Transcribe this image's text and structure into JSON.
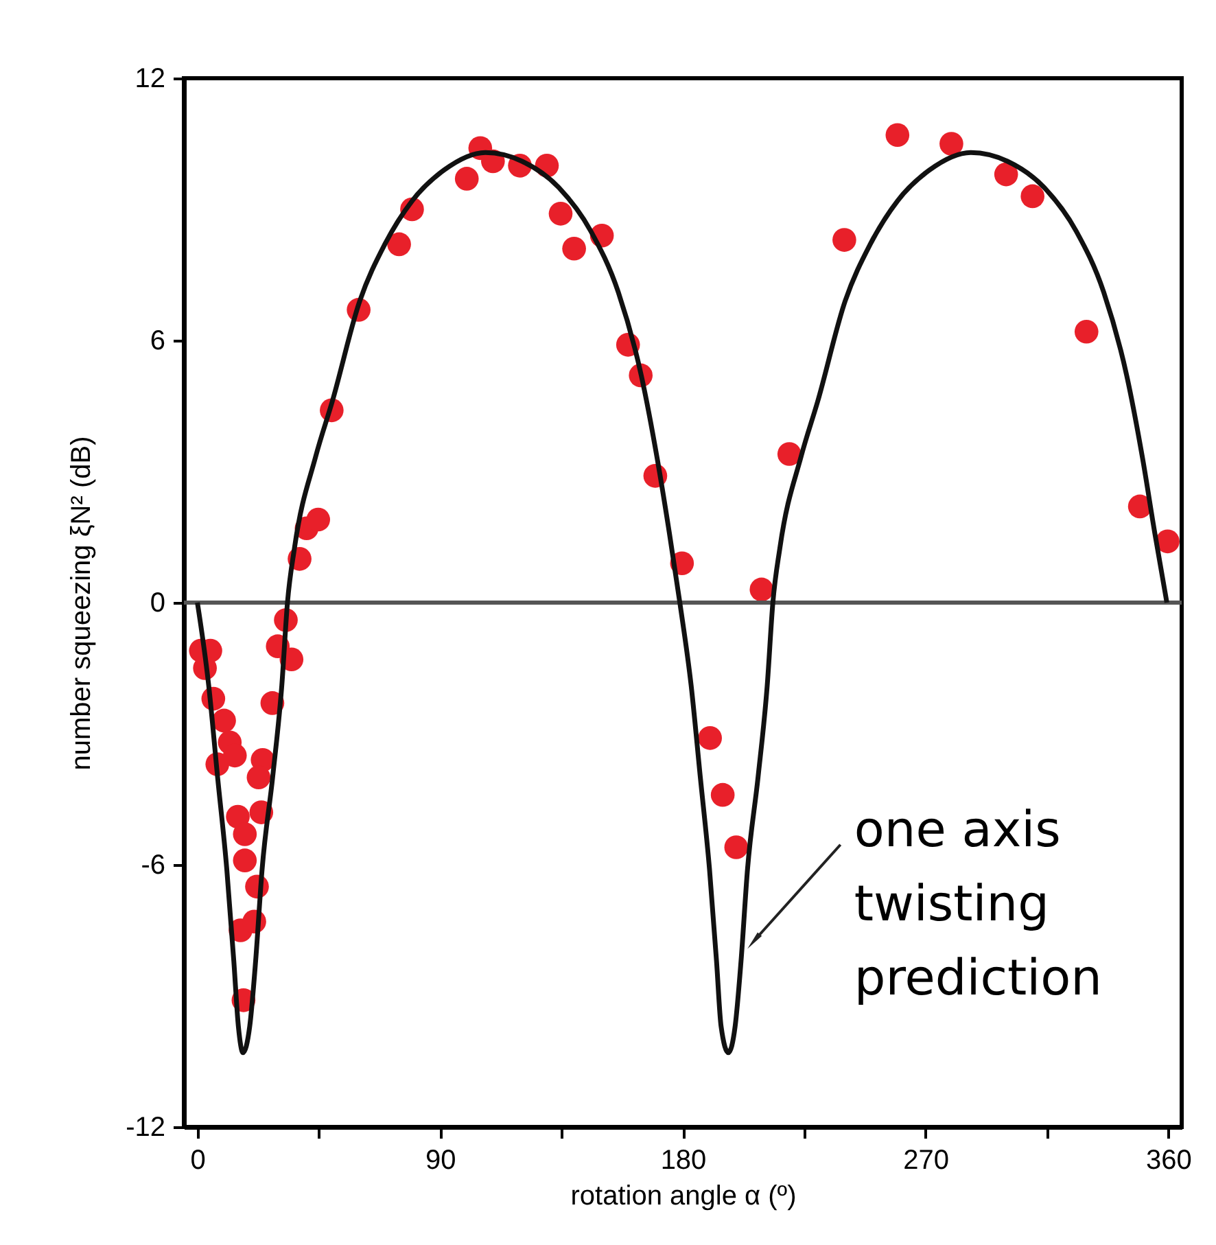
{
  "chart_data": {
    "type": "scatter",
    "xlabel": "rotation angle α (º)",
    "ylabel": "number squeezing ξN² (dB)",
    "xlim": [
      -5,
      365
    ],
    "ylim": [
      -12,
      12
    ],
    "xticks": [
      0,
      {
        "value": 45,
        "label": null
      },
      90,
      {
        "value": 135,
        "label": null
      },
      180,
      {
        "value": 225,
        "label": null
      },
      270,
      {
        "value": 315,
        "label": null
      },
      360
    ],
    "yticks": [
      -12,
      -6,
      0,
      6,
      12
    ],
    "marker": "circle",
    "ref_lines": [
      {
        "axis": "y",
        "value": 0,
        "color": "#555555"
      }
    ],
    "annotations": [
      {
        "text": "one axis\ntwisting\nprediction",
        "x": 207,
        "y": -7.7
      }
    ],
    "series": [
      {
        "color": "#e8202a",
        "x": [
          1.3,
          4.8,
          2.8,
          5.9,
          9.9,
          12.0,
          7.4,
          13.9,
          24.2,
          22.7,
          15.0,
          23.7,
          17.6,
          17.6,
          22.1,
          16.0,
          21.1,
          17.1,
          32.8,
          29.8,
          34.9,
          27.8,
          37.9,
          40.5,
          44.8,
          49.8,
          59.8,
          74.8,
          79.6,
          99.9,
          104.9,
          109.6,
          119.6,
          129.6,
          134.7,
          139.7,
          150.0,
          159.7,
          164.4,
          169.8,
          179.7,
          190.1,
          194.8,
          199.8,
          209.2,
          219.5,
          239.9,
          259.6,
          279.6,
          299.9,
          309.7,
          329.7,
          349.5,
          359.8
        ],
        "values": [
          -1.1,
          -1.1,
          -1.5,
          -2.2,
          -2.7,
          -3.2,
          -3.7,
          -3.5,
          -3.6,
          -4.0,
          -4.9,
          -4.8,
          -5.3,
          -5.9,
          -6.5,
          -7.5,
          -7.3,
          -9.1,
          -0.4,
          -1.0,
          -1.3,
          -2.3,
          1.0,
          1.7,
          1.9,
          4.4,
          6.7,
          8.2,
          9.0,
          9.7,
          10.4,
          10.1,
          10.0,
          10.0,
          8.9,
          8.1,
          8.4,
          5.9,
          5.2,
          2.9,
          0.9,
          -3.1,
          -4.4,
          -5.6,
          0.3,
          3.4,
          8.3,
          10.7,
          10.5,
          9.8,
          9.3,
          6.2,
          2.2,
          1.4
        ]
      },
      {
        "type": "line",
        "color": "#111111",
        "marker": "none",
        "line_style": "solid",
        "x": [
          0,
          4.2,
          7.5,
          10.9,
          13.5,
          15.2,
          16.9,
          19.4,
          21.6,
          24,
          27.9,
          31.3,
          33.4,
          36,
          43.9,
          50,
          60.2,
          69.5,
          79.7,
          91.5,
          106.8,
          120.4,
          134,
          145.9,
          156.1,
          164.6,
          170.5,
          175,
          178.9,
          183.1,
          186.5,
          189.9,
          192.5,
          194.2,
          196.9,
          199.4,
          201.6,
          204,
          207.9,
          211.3,
          213.4,
          216,
          223.9,
          230,
          240.2,
          249.5,
          259.7,
          271.5,
          286.8,
          300.4,
          314,
          325.9,
          336.1,
          344.6,
          350.5,
          355,
          359.5
        ],
        "values": [
          0,
          -1.9,
          -4.0,
          -6.1,
          -8.2,
          -9.7,
          -10.3,
          -9.7,
          -8.2,
          -6.1,
          -4.0,
          -1.9,
          0,
          1.25,
          3.35,
          4.6,
          6.9,
          8.2,
          9.2,
          9.9,
          10.3,
          10.1,
          9.5,
          8.5,
          7.1,
          5.2,
          3.3,
          1.6,
          0,
          -1.9,
          -4.0,
          -6.1,
          -8.2,
          -9.7,
          -10.3,
          -9.7,
          -8.2,
          -6.1,
          -4.0,
          -1.9,
          0,
          1.25,
          3.35,
          4.6,
          6.9,
          8.2,
          9.2,
          9.9,
          10.3,
          10.1,
          9.5,
          8.5,
          7.1,
          5.2,
          3.3,
          1.6,
          0
        ]
      }
    ]
  }
}
